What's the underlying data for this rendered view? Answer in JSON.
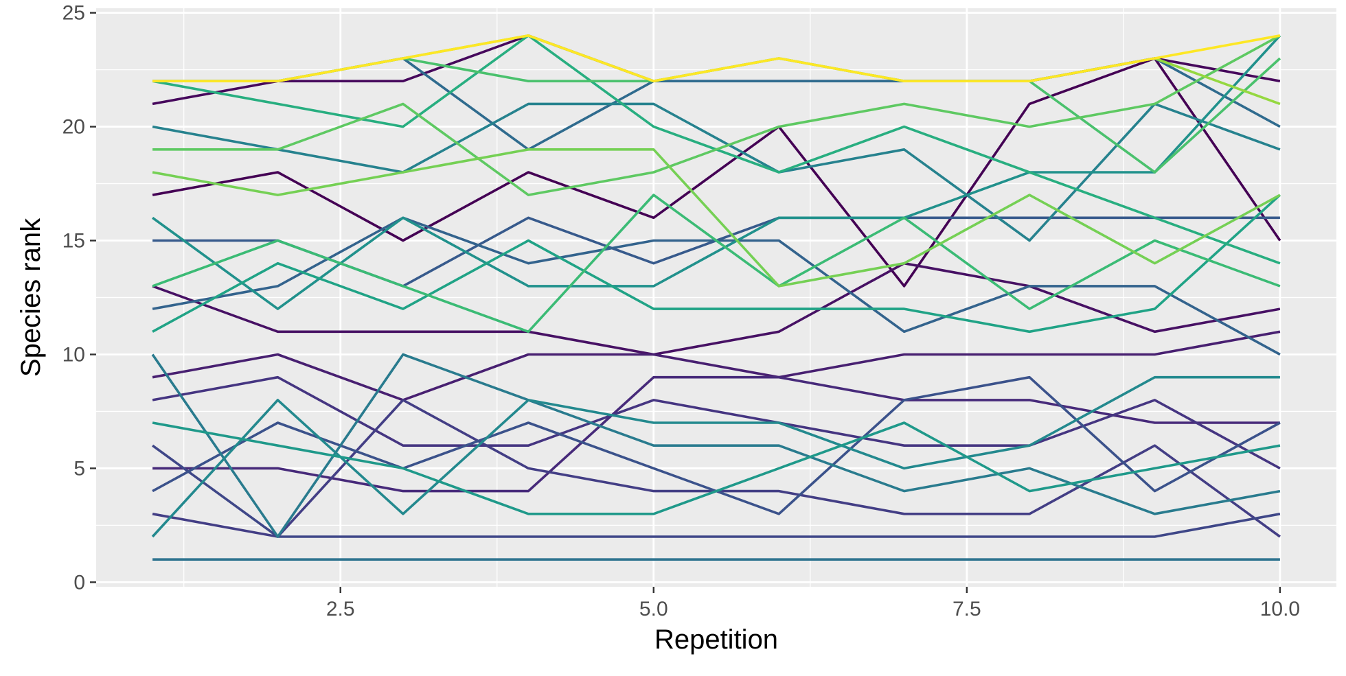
{
  "chart_data": {
    "type": "line",
    "title": "",
    "xlabel": "Repetition",
    "ylabel": "Species rank",
    "xlim": [
      0.55,
      10.45
    ],
    "ylim": [
      -0.2,
      25.2
    ],
    "x_ticks": [
      2.5,
      5.0,
      7.5,
      10.0
    ],
    "x_tick_labels": [
      "2.5",
      "5.0",
      "7.5",
      "10.0"
    ],
    "y_ticks": [
      0,
      5,
      10,
      15,
      20,
      25
    ],
    "y_tick_labels": [
      "0",
      "5",
      "10",
      "15",
      "20",
      "25"
    ],
    "grid": true,
    "legend": "none",
    "panel_background": "#ebebeb",
    "x": [
      1,
      2,
      3,
      4,
      5,
      6,
      7,
      8,
      9,
      10
    ],
    "series": [
      {
        "color": "#440154",
        "values": [
          17,
          18,
          15,
          18,
          16,
          20,
          13,
          21,
          23,
          15
        ]
      },
      {
        "color": "#46085c",
        "values": [
          21,
          22,
          22,
          24,
          22,
          22,
          22,
          22,
          23,
          22
        ]
      },
      {
        "color": "#471164",
        "values": [
          13,
          11,
          11,
          11,
          10,
          11,
          14,
          13,
          11,
          12
        ]
      },
      {
        "color": "#482071",
        "values": [
          9,
          10,
          8,
          10,
          10,
          9,
          10,
          10,
          10,
          11
        ]
      },
      {
        "color": "#472a7a",
        "values": [
          5,
          5,
          4,
          4,
          9,
          9,
          8,
          8,
          7,
          7
        ]
      },
      {
        "color": "#453581",
        "values": [
          8,
          9,
          6,
          6,
          8,
          7,
          6,
          6,
          8,
          5
        ]
      },
      {
        "color": "#433e85",
        "values": [
          3,
          2,
          8,
          5,
          4,
          4,
          3,
          3,
          6,
          2
        ]
      },
      {
        "color": "#3f4788",
        "values": [
          6,
          2,
          2,
          2,
          2,
          2,
          2,
          2,
          2,
          3
        ]
      },
      {
        "color": "#3b528b",
        "values": [
          4,
          7,
          5,
          7,
          5,
          3,
          8,
          9,
          4,
          7
        ]
      },
      {
        "color": "#375a8c",
        "values": [
          15,
          15,
          13,
          16,
          14,
          16,
          16,
          16,
          16,
          16
        ]
      },
      {
        "color": "#33638d",
        "values": [
          12,
          13,
          16,
          14,
          15,
          15,
          11,
          13,
          13,
          10
        ]
      },
      {
        "color": "#2f6b8e",
        "values": [
          22,
          22,
          23,
          19,
          22,
          22,
          22,
          22,
          23,
          20
        ]
      },
      {
        "color": "#2c728e",
        "values": [
          1,
          1,
          1,
          1,
          1,
          1,
          1,
          1,
          1,
          1
        ]
      },
      {
        "color": "#297b8e",
        "values": [
          10,
          2,
          10,
          8,
          6,
          6,
          4,
          5,
          3,
          4
        ]
      },
      {
        "color": "#26828e",
        "values": [
          20,
          19,
          18,
          21,
          21,
          18,
          19,
          15,
          21,
          19
        ]
      },
      {
        "color": "#23898e",
        "values": [
          2,
          8,
          3,
          8,
          7,
          7,
          5,
          6,
          9,
          9
        ]
      },
      {
        "color": "#21918c",
        "values": [
          16,
          12,
          16,
          13,
          13,
          16,
          16,
          18,
          18,
          24
        ]
      },
      {
        "color": "#1f998a",
        "values": [
          7,
          6,
          5,
          3,
          3,
          5,
          7,
          4,
          5,
          6
        ]
      },
      {
        "color": "#20a386",
        "values": [
          11,
          14,
          12,
          15,
          12,
          12,
          12,
          11,
          12,
          17
        ]
      },
      {
        "color": "#28ae80",
        "values": [
          22,
          21,
          20,
          24,
          20,
          18,
          20,
          18,
          16,
          14
        ]
      },
      {
        "color": "#3bbb75",
        "values": [
          13,
          15,
          13,
          11,
          17,
          13,
          16,
          12,
          15,
          13
        ]
      },
      {
        "color": "#4ac16d",
        "values": [
          22,
          22,
          23,
          22,
          22,
          23,
          22,
          22,
          18,
          23
        ]
      },
      {
        "color": "#5ec962",
        "values": [
          19,
          19,
          21,
          17,
          18,
          20,
          21,
          20,
          21,
          24
        ]
      },
      {
        "color": "#75d054",
        "values": [
          18,
          17,
          18,
          19,
          19,
          13,
          14,
          17,
          14,
          17
        ]
      },
      {
        "color": "#95d840",
        "values": [
          22,
          22,
          23,
          24,
          22,
          23,
          22,
          22,
          23,
          21
        ]
      },
      {
        "color": "#fde725",
        "values": [
          22,
          22,
          23,
          24,
          22,
          23,
          22,
          22,
          23,
          24
        ]
      }
    ]
  }
}
